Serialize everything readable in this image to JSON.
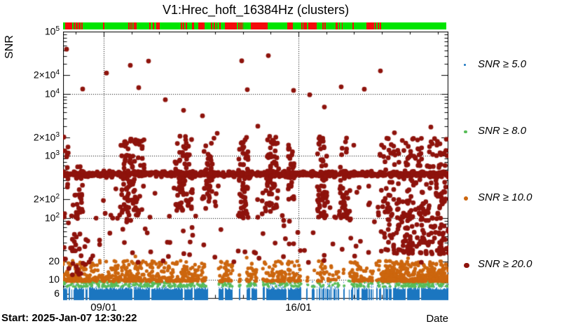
{
  "header": {
    "title": "V1:Hrec_hoft_16384Hz (clusters)"
  },
  "footer": {
    "start_label": "Start: 2025-Jan-07 12:30:22",
    "date_label": "Date"
  },
  "status_bar": {
    "ok_color": "#00e400",
    "alert_color": "#f20c0c",
    "red_segments": [
      [
        0.0055,
        0.0238
      ],
      [
        0.0283,
        0.032
      ],
      [
        0.0329,
        0.0384
      ],
      [
        0.0402,
        0.0457
      ],
      [
        0.0484,
        0.0521
      ],
      [
        0.1033,
        0.107
      ],
      [
        0.17,
        0.1737
      ],
      [
        0.1755,
        0.1783
      ],
      [
        0.1801,
        0.1828
      ],
      [
        0.1846,
        0.1874
      ],
      [
        0.1892,
        0.192
      ],
      [
        0.2249,
        0.2285
      ],
      [
        0.234,
        0.2377
      ],
      [
        0.2431,
        0.2523
      ],
      [
        0.3071,
        0.3108
      ],
      [
        0.3135,
        0.3163
      ],
      [
        0.3199,
        0.3227
      ],
      [
        0.3364,
        0.3419
      ],
      [
        0.3528,
        0.3693
      ],
      [
        0.3857,
        0.3903
      ],
      [
        0.3931,
        0.3976
      ],
      [
        0.4004,
        0.4031
      ],
      [
        0.4077,
        0.4113
      ],
      [
        0.4232,
        0.4543
      ],
      [
        0.457,
        0.4598
      ],
      [
        0.4625,
        0.4653
      ],
      [
        0.4671,
        0.4698
      ],
      [
        0.4899,
        0.5338
      ],
      [
        0.585,
        0.5896
      ],
      [
        0.5914,
        0.5996
      ],
      [
        0.6216,
        0.6252
      ],
      [
        0.627,
        0.6362
      ],
      [
        0.6399,
        0.6627
      ],
      [
        0.6764,
        0.6792
      ],
      [
        0.6819,
        0.6847
      ],
      [
        0.7112,
        0.7166
      ],
      [
        0.7194,
        0.7221
      ],
      [
        0.7267,
        0.7294
      ],
      [
        0.755,
        0.7587
      ],
      [
        0.7916,
        0.8108
      ],
      [
        0.8135,
        0.8163
      ],
      [
        0.8208,
        0.8245
      ],
      [
        0.8272,
        0.83
      ]
    ]
  },
  "chart_data": {
    "type": "scatter",
    "title": "V1:Hrec_hoft_16384Hz (clusters)",
    "xlabel": "Date",
    "ylabel": "SNR",
    "x_axis": {
      "start": "2025-Jan-07 12:30:22",
      "span_days": 13.849,
      "day_tick_offset": 0.46,
      "ticks": [
        {
          "day": 1.46,
          "label": "09/01"
        },
        {
          "day": 8.46,
          "label": "16/01"
        }
      ],
      "grid": "dotted"
    },
    "y_axis": {
      "scale": "log",
      "min": 5,
      "max": 100000,
      "grid_values": [
        10,
        100,
        1000,
        10000
      ],
      "ticks": [
        {
          "v": 100000,
          "pre": "",
          "base": "10",
          "exp": "5"
        },
        {
          "v": 20000,
          "pre": "2×",
          "base": "10",
          "exp": "4"
        },
        {
          "v": 10000,
          "pre": "",
          "base": "10",
          "exp": "4"
        },
        {
          "v": 2000,
          "pre": "2×",
          "base": "10",
          "exp": "3"
        },
        {
          "v": 1000,
          "pre": "",
          "base": "10",
          "exp": "3"
        },
        {
          "v": 200,
          "pre": "2×",
          "base": "10",
          "exp": "2"
        },
        {
          "v": 100,
          "pre": "",
          "base": "10",
          "exp": "2"
        },
        {
          "v": 20,
          "text": "20"
        },
        {
          "v": 10,
          "text": "10"
        },
        {
          "v": 6,
          "text": "6"
        }
      ]
    },
    "legend": {
      "position": "right"
    },
    "series": [
      {
        "name": "snr_ge_5",
        "legend_label": "SNR ≥ 5.0",
        "color": "#1b76c0",
        "marker_px": 3,
        "kind": "column_band",
        "band": {
          "top_snr_min": 7.0,
          "top_snr_max": 8.1,
          "spray_max_snr": 9.6,
          "sparse_regions": [
            [
              8.8,
              11.85
            ]
          ],
          "gaps_days": [
            [
              5.21,
              5.59
            ],
            [
              6.09,
              6.32
            ],
            [
              6.37,
              6.6
            ],
            [
              6.97,
              7.18
            ],
            [
              8.56,
              8.74
            ],
            [
              8.81,
              8.94
            ],
            [
              9.04,
              9.11
            ],
            [
              9.92,
              10.07
            ],
            [
              10.12,
              10.25
            ],
            [
              11.15,
              11.25
            ]
          ],
          "slits_days": [
            0.18,
            0.28,
            0.36,
            0.78,
            0.9,
            2.52,
            3.15,
            4.33,
            4.68,
            5.79,
            6.75,
            7.28,
            8.06,
            10.32,
            11.33,
            11.83,
            12.33,
            12.84
          ],
          "slit_width_days": 0.05
        }
      },
      {
        "name": "snr_ge_8",
        "legend_label": "SNR ≥ 8.0",
        "color": "#58bd58",
        "marker_px": 4.5,
        "kind": "scatter_band",
        "snr_min": 7.85,
        "snr_max": 9.85,
        "low_bias_pow": 1.6,
        "segments": [
          [
            0.0,
            5.16,
            190
          ],
          [
            5.59,
            6.97,
            48
          ],
          [
            7.18,
            8.56,
            38
          ],
          [
            8.74,
            9.92,
            20
          ],
          [
            10.07,
            11.15,
            30
          ],
          [
            11.25,
            12.03,
            22
          ],
          [
            12.03,
            13.85,
            95
          ]
        ],
        "extras": []
      },
      {
        "name": "snr_ge_10",
        "legend_label": "SNR ≥ 10.0",
        "color": "#cc660e",
        "marker_px": 6,
        "kind": "scatter_band",
        "snr_min": 9.6,
        "snr_decades": 0.33,
        "low_bias_pow": 2.0,
        "segments": [
          [
            0.0,
            5.16,
            430
          ],
          [
            5.59,
            6.97,
            125
          ],
          [
            7.18,
            8.56,
            95
          ],
          [
            8.74,
            9.92,
            40
          ],
          [
            10.07,
            11.15,
            62
          ],
          [
            11.25,
            12.03,
            42
          ],
          [
            11.45,
            13.85,
            340
          ]
        ],
        "extras": [
          [
            0.02,
            20.0
          ],
          [
            0.0,
            18.0
          ],
          [
            0.12,
            13.0
          ],
          [
            2.6,
            24.0
          ],
          [
            6.6,
            23.0
          ],
          [
            12.4,
            22.5
          ]
        ]
      },
      {
        "name": "snr_ge_20",
        "legend_label": "SNR ≥ 20.0",
        "color": "#8e130c",
        "marker_px": 7.5,
        "kind": "clustered",
        "band": {
          "count": 760,
          "log_mean": 2.705,
          "log_sd": 0.05
        },
        "clusters": [
          [
            0.11,
            0.1,
            300,
            2200,
            12
          ],
          [
            0.554,
            0.18,
            90,
            700,
            28
          ],
          [
            2.518,
            0.5,
            110,
            2100,
            95
          ],
          [
            4.331,
            0.4,
            130,
            2100,
            75
          ],
          [
            5.212,
            0.23,
            180,
            2000,
            42
          ],
          [
            6.496,
            0.23,
            100,
            2100,
            55
          ],
          [
            7.503,
            0.28,
            140,
            2100,
            65
          ],
          [
            8.208,
            0.15,
            200,
            1600,
            30
          ],
          [
            9.316,
            0.23,
            100,
            2100,
            55
          ],
          [
            10.122,
            0.23,
            90,
            2000,
            48
          ]
        ],
        "right_cloud": {
          "day_min": 11.38,
          "day_max": 13.85,
          "count": 300,
          "log_base": 1.42,
          "log_span": 1.88,
          "pow": 1.3
        },
        "low_left_cluster": {
          "day_min": 0.2,
          "day_max": 1.13,
          "count": 26,
          "snr_base": 11,
          "log_span": 0.7
        },
        "sparse": {
          "count": 140,
          "log_base": 1.28,
          "log_span": 1.25
        },
        "outliers": [
          [
            0.126,
            52000
          ],
          [
            0.705,
            11900
          ],
          [
            1.561,
            21500
          ],
          [
            2.417,
            28600
          ],
          [
            2.719,
            12500
          ],
          [
            3.072,
            33500
          ],
          [
            3.676,
            8000
          ],
          [
            4.331,
            5400
          ],
          [
            5.011,
            4400
          ],
          [
            5.54,
            2300
          ],
          [
            6.421,
            33800
          ],
          [
            6.622,
            11600
          ],
          [
            7.0,
            3000
          ],
          [
            7.378,
            41000
          ],
          [
            7.705,
            1600
          ],
          [
            8.284,
            11300
          ],
          [
            8.863,
            9600
          ],
          [
            9.191,
            1570
          ],
          [
            9.392,
            6100
          ],
          [
            9.996,
            12900
          ],
          [
            10.449,
            1480
          ],
          [
            10.827,
            11800
          ],
          [
            11.406,
            23300
          ],
          [
            11.91,
            2350
          ],
          [
            12.741,
            1800
          ],
          [
            13.219,
            2900
          ],
          [
            13.546,
            1560
          ],
          [
            0.03,
            2000
          ],
          [
            0.05,
            520
          ],
          [
            0.1,
            480
          ]
        ]
      }
    ]
  }
}
